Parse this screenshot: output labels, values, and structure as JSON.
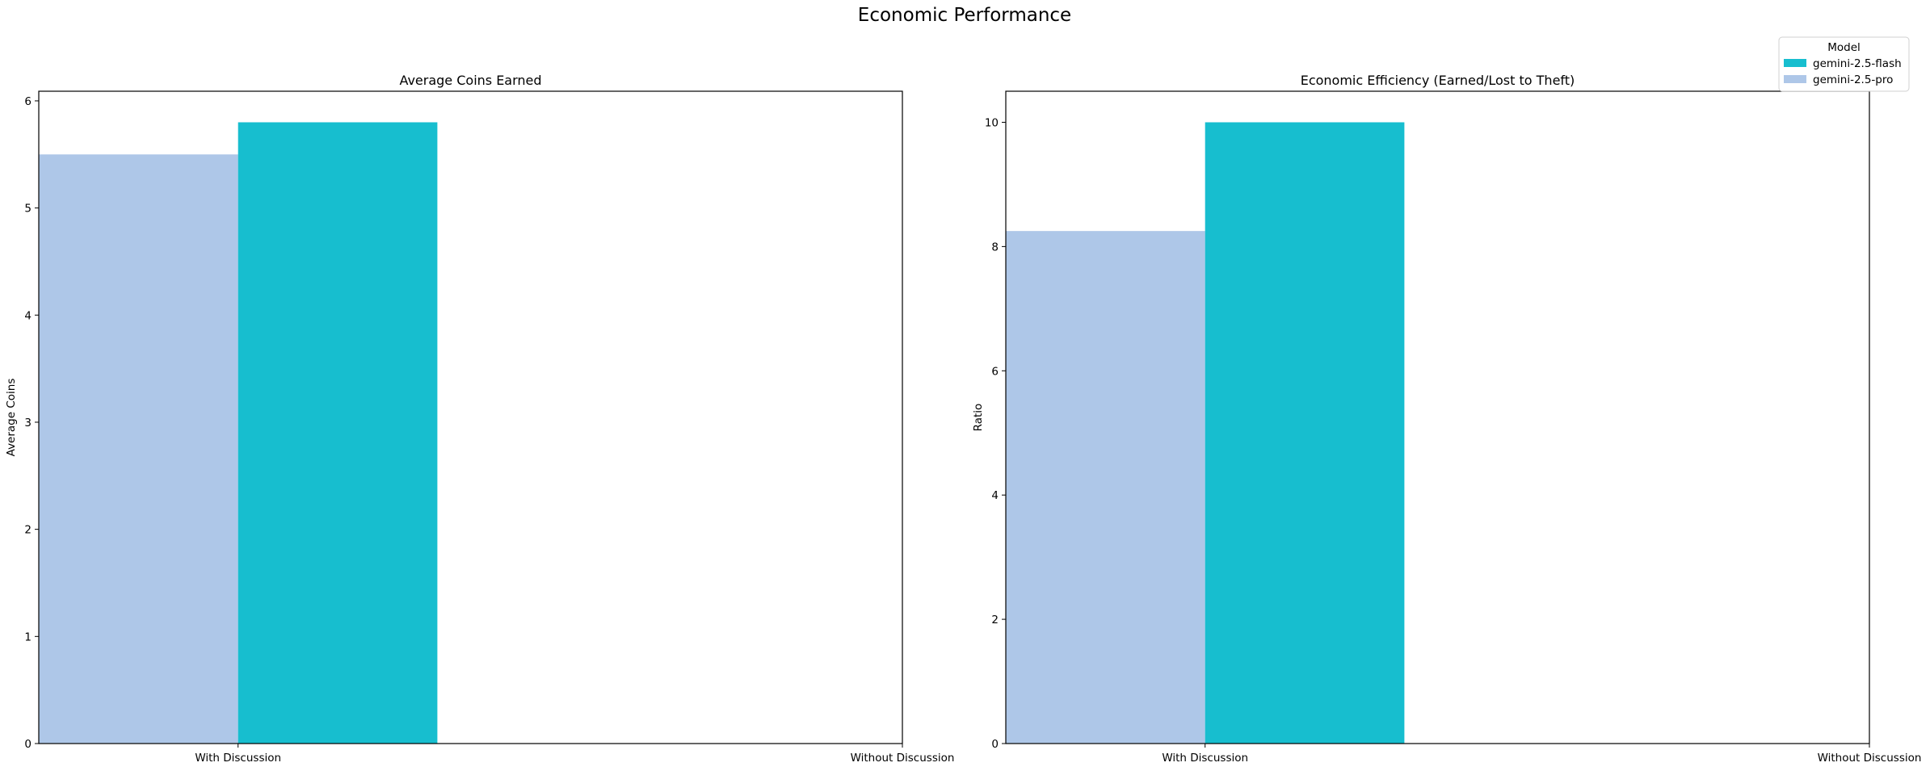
{
  "suptitle": "Economic Performance",
  "legend": {
    "title": "Model",
    "placement": "top-right",
    "entries": [
      {
        "label": "gemini-2.5-flash",
        "color": "#17becf"
      },
      {
        "label": "gemini-2.5-pro",
        "color": "#aec7e8"
      }
    ]
  },
  "chart_data": [
    {
      "type": "bar",
      "title": "Average Coins Earned",
      "xlabel": "",
      "ylabel": "Average Coins",
      "categories": [
        "With Discussion",
        "Without Discussion"
      ],
      "series": [
        {
          "name": "gemini-2.5-pro",
          "color": "#aec7e8",
          "values": [
            5.5,
            null
          ]
        },
        {
          "name": "gemini-2.5-flash",
          "color": "#17becf",
          "values": [
            5.8,
            null
          ]
        }
      ],
      "ylim": [
        0,
        6.09
      ],
      "yticks": [
        0,
        1,
        2,
        3,
        4,
        5,
        6
      ],
      "grid": false
    },
    {
      "type": "bar",
      "title": "Economic Efficiency (Earned/Lost to Theft)",
      "xlabel": "",
      "ylabel": "Ratio",
      "categories": [
        "With Discussion",
        "Without Discussion"
      ],
      "series": [
        {
          "name": "gemini-2.5-pro",
          "color": "#aec7e8",
          "values": [
            8.25,
            null
          ]
        },
        {
          "name": "gemini-2.5-flash",
          "color": "#17becf",
          "values": [
            10.0,
            null
          ]
        }
      ],
      "ylim": [
        0,
        10.5
      ],
      "yticks": [
        0,
        2,
        4,
        6,
        8,
        10
      ],
      "grid": false
    }
  ]
}
